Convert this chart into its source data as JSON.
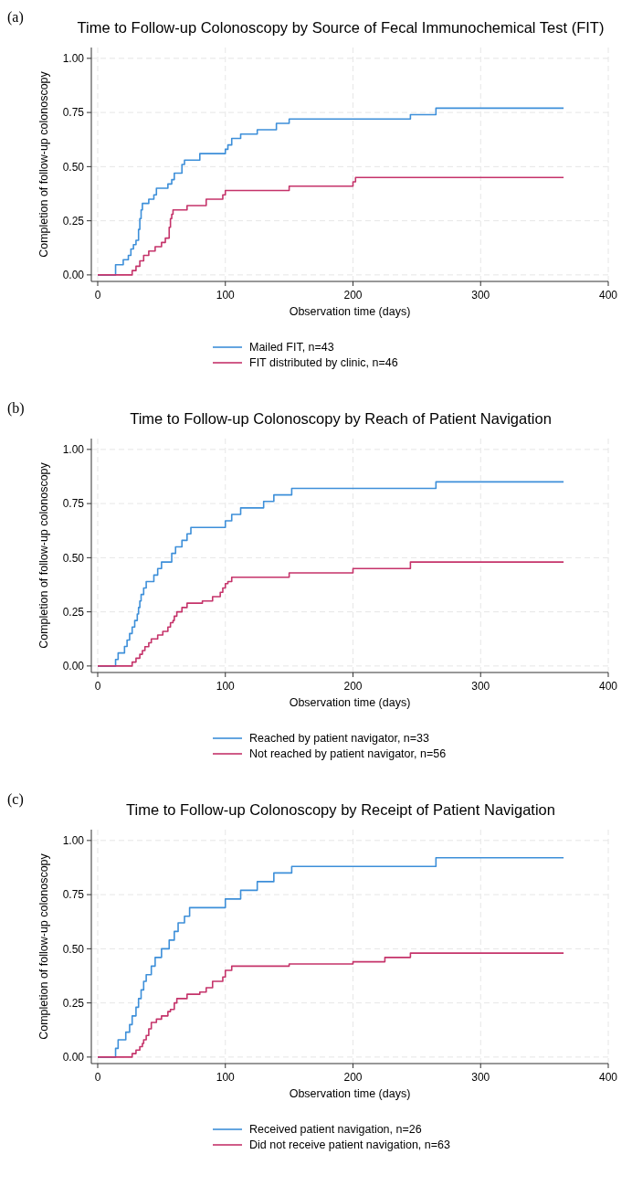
{
  "chart_data": [
    {
      "type": "step",
      "annotations": [
        "(a)"
      ],
      "title": "Time to Follow-up Colonoscopy by Source of Fecal Immunochemical Test (FIT)",
      "xlabel": "Observation time (days)",
      "ylabel": "Completion of follow-up colonoscopy",
      "xlim": [
        -5,
        400
      ],
      "ylim": [
        -0.03,
        1.05
      ],
      "xticks": [
        0,
        100,
        200,
        300,
        400
      ],
      "yticks": [
        {
          "value": 0,
          "label": "0.00"
        },
        {
          "value": 0.25,
          "label": "0.25"
        },
        {
          "value": 0.5,
          "label": "0.50"
        },
        {
          "value": 0.75,
          "label": "0.75"
        },
        {
          "value": 1,
          "label": "1.00"
        }
      ],
      "grid": true,
      "legend": "bottom",
      "series": [
        {
          "name": "Mailed FIT, n=43",
          "color": "#3d8fd9",
          "x": [
            0,
            14,
            20,
            24,
            26,
            28,
            30,
            32,
            33,
            34,
            35,
            40,
            44,
            46,
            55,
            58,
            60,
            66,
            68,
            80,
            100,
            102,
            105,
            112,
            125,
            140,
            150,
            245,
            265,
            365
          ],
          "values": [
            0,
            0.047,
            0.07,
            0.09,
            0.12,
            0.14,
            0.16,
            0.21,
            0.26,
            0.3,
            0.33,
            0.35,
            0.37,
            0.4,
            0.42,
            0.44,
            0.47,
            0.51,
            0.53,
            0.56,
            0.58,
            0.6,
            0.63,
            0.65,
            0.67,
            0.7,
            0.72,
            0.74,
            0.77,
            0.77
          ]
        },
        {
          "name": "FIT distributed by clinic, n=46",
          "color": "#c5336a",
          "x": [
            0,
            27,
            30,
            33,
            36,
            40,
            45,
            50,
            53,
            56,
            57,
            58,
            59,
            70,
            85,
            98,
            100,
            150,
            200,
            202,
            365
          ],
          "values": [
            0,
            0.02,
            0.04,
            0.065,
            0.09,
            0.11,
            0.13,
            0.15,
            0.17,
            0.22,
            0.26,
            0.28,
            0.3,
            0.32,
            0.35,
            0.37,
            0.39,
            0.41,
            0.43,
            0.45,
            0.45
          ]
        }
      ]
    },
    {
      "type": "step",
      "annotations": [
        "(b)"
      ],
      "title": "Time to Follow-up Colonoscopy by Reach of Patient Navigation",
      "xlabel": "Observation time (days)",
      "ylabel": "Completion of follow-up colonoscopy",
      "xlim": [
        -5,
        400
      ],
      "ylim": [
        -0.03,
        1.05
      ],
      "xticks": [
        0,
        100,
        200,
        300,
        400
      ],
      "yticks": [
        {
          "value": 0,
          "label": "0.00"
        },
        {
          "value": 0.25,
          "label": "0.25"
        },
        {
          "value": 0.5,
          "label": "0.50"
        },
        {
          "value": 0.75,
          "label": "0.75"
        },
        {
          "value": 1,
          "label": "1.00"
        }
      ],
      "grid": true,
      "legend": "bottom",
      "series": [
        {
          "name": "Reached by patient navigator, n=33",
          "color": "#3d8fd9",
          "x": [
            0,
            14,
            16,
            21,
            23,
            25,
            27,
            29,
            31,
            32,
            33,
            34,
            36,
            38,
            44,
            47,
            50,
            58,
            61,
            66,
            70,
            73,
            100,
            105,
            112,
            130,
            138,
            152,
            265,
            365
          ],
          "values": [
            0,
            0.03,
            0.06,
            0.09,
            0.12,
            0.15,
            0.18,
            0.21,
            0.24,
            0.27,
            0.3,
            0.33,
            0.36,
            0.39,
            0.42,
            0.45,
            0.48,
            0.52,
            0.55,
            0.58,
            0.61,
            0.64,
            0.67,
            0.7,
            0.73,
            0.76,
            0.79,
            0.82,
            0.85,
            0.85
          ]
        },
        {
          "name": "Not reached by patient navigator, n=56",
          "color": "#c5336a",
          "x": [
            0,
            27,
            30,
            33,
            35,
            37,
            40,
            42,
            47,
            51,
            55,
            57,
            59,
            60,
            62,
            66,
            70,
            82,
            90,
            96,
            98,
            100,
            102,
            105,
            150,
            200,
            245,
            365
          ],
          "values": [
            0,
            0.018,
            0.036,
            0.054,
            0.071,
            0.089,
            0.107,
            0.125,
            0.143,
            0.16,
            0.18,
            0.2,
            0.21,
            0.23,
            0.25,
            0.27,
            0.29,
            0.3,
            0.32,
            0.34,
            0.36,
            0.38,
            0.39,
            0.41,
            0.43,
            0.45,
            0.48,
            0.48
          ]
        }
      ]
    },
    {
      "type": "step",
      "annotations": [
        "(c)"
      ],
      "title": "Time to Follow-up Colonoscopy by Receipt of Patient Navigation",
      "xlabel": "Observation time (days)",
      "ylabel": "Completion of follow-up colonoscopy",
      "xlim": [
        -5,
        400
      ],
      "ylim": [
        -0.03,
        1.05
      ],
      "xticks": [
        0,
        100,
        200,
        300,
        400
      ],
      "yticks": [
        {
          "value": 0,
          "label": "0.00"
        },
        {
          "value": 0.25,
          "label": "0.25"
        },
        {
          "value": 0.5,
          "label": "0.50"
        },
        {
          "value": 0.75,
          "label": "0.75"
        },
        {
          "value": 1,
          "label": "1.00"
        }
      ],
      "grid": true,
      "legend": "bottom",
      "series": [
        {
          "name": "Received patient navigation, n=26",
          "color": "#3d8fd9",
          "x": [
            0,
            14,
            16,
            22,
            25,
            27,
            30,
            32,
            34,
            36,
            38,
            42,
            45,
            50,
            56,
            60,
            63,
            68,
            72,
            100,
            112,
            125,
            138,
            152,
            265,
            365
          ],
          "values": [
            0,
            0.04,
            0.08,
            0.115,
            0.15,
            0.19,
            0.23,
            0.27,
            0.31,
            0.35,
            0.38,
            0.42,
            0.46,
            0.5,
            0.54,
            0.58,
            0.62,
            0.65,
            0.69,
            0.73,
            0.77,
            0.81,
            0.85,
            0.88,
            0.92,
            0.92
          ]
        },
        {
          "name": "Did not receive patient navigation, n=63",
          "color": "#c5336a",
          "x": [
            0,
            27,
            30,
            33,
            35,
            36,
            38,
            40,
            42,
            46,
            50,
            55,
            57,
            60,
            62,
            70,
            80,
            85,
            90,
            98,
            100,
            105,
            150,
            200,
            225,
            245,
            365
          ],
          "values": [
            0,
            0.016,
            0.032,
            0.048,
            0.063,
            0.08,
            0.1,
            0.13,
            0.16,
            0.175,
            0.19,
            0.21,
            0.22,
            0.25,
            0.27,
            0.29,
            0.3,
            0.32,
            0.35,
            0.37,
            0.4,
            0.42,
            0.43,
            0.44,
            0.46,
            0.48,
            0.48
          ]
        }
      ]
    }
  ]
}
